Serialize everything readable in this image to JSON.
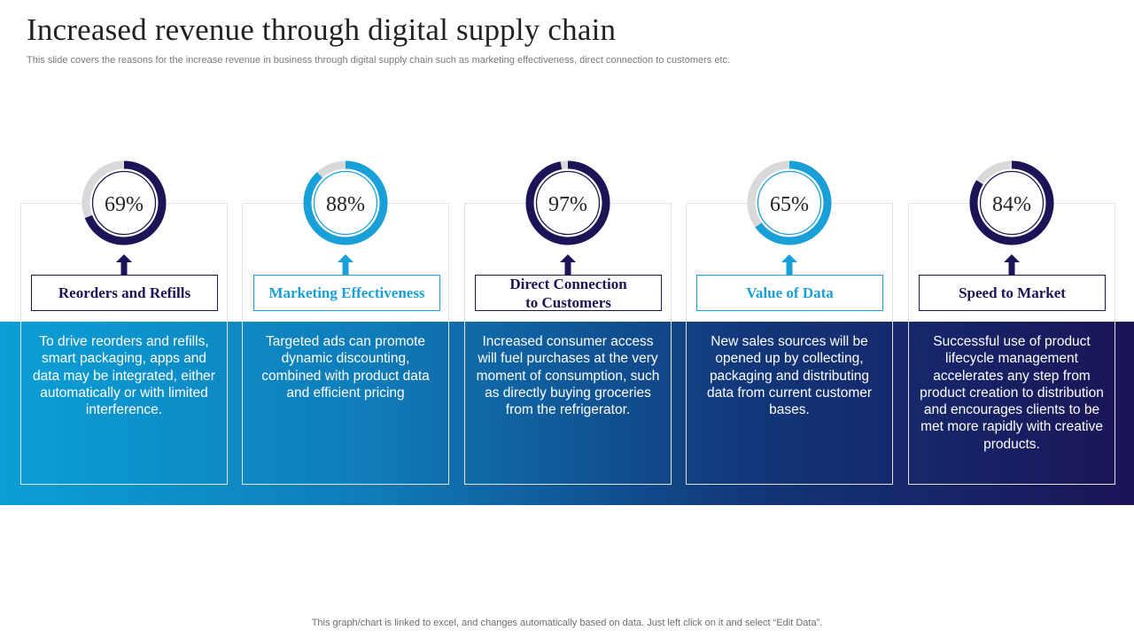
{
  "slide": {
    "title": "Increased revenue through digital supply chain",
    "subtitle": "This slide covers the reasons for the increase revenue in business through digital supply chain such as marketing effectiveness, direct connection to customers etc.",
    "footer": "This graph/chart is linked to excel, and changes automatically based on data. Just left click on it and select “Edit Data”."
  },
  "colors": {
    "navy": "#1b1457",
    "blue": "#1aa0d8",
    "track": "#d9d9d9",
    "gradient_start": "#0b9fd6",
    "gradient_end": "#1b1457"
  },
  "chart_data": {
    "type": "doughnut-gauges",
    "unit": "%",
    "max": 100,
    "items": [
      {
        "category": "Reorders and Refills",
        "value": 69,
        "label": "69%",
        "color": "navy",
        "description": "To drive reorders and refills, smart packaging, apps and data may be integrated, either automatically  or with limited interference."
      },
      {
        "category": "Marketing Effectiveness",
        "value": 88,
        "label": "88%",
        "color": "blue",
        "description": "Targeted ads can promote dynamic discounting, combined with product data and efficient pricing"
      },
      {
        "category": "Direct Connection to Customers",
        "value": 97,
        "label": "97%",
        "color": "navy",
        "description": "Increased consumer access will fuel purchases at the very moment of consumption, such as directly buying groceries from the refrigerator."
      },
      {
        "category": "Value of Data",
        "value": 65,
        "label": "65%",
        "color": "blue",
        "description": "New sales sources will be opened up by collecting, packaging and distributing data from current customer bases."
      },
      {
        "category": "Speed to Market",
        "value": 84,
        "label": "84%",
        "color": "navy",
        "description": "Successful use of product lifecycle management accelerates any step from product creation to distribution and encourages clients to be met more rapidly with creative products."
      }
    ]
  }
}
